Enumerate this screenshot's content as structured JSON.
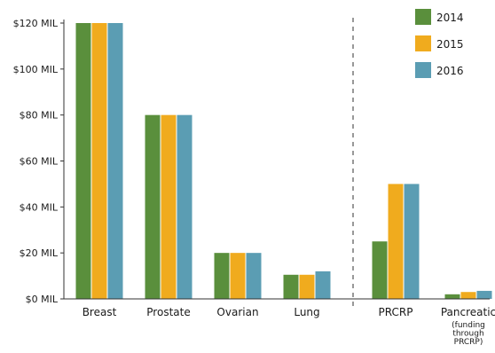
{
  "chart_data": {
    "type": "bar",
    "title": "",
    "xlabel": "",
    "ylabel": "",
    "ylim": [
      0,
      120
    ],
    "y_ticks": [
      0,
      20,
      40,
      60,
      80,
      100,
      120
    ],
    "y_tick_labels": [
      "$0 MIL",
      "$20 MIL",
      "$40 MIL",
      "$60 MIL",
      "$80 MIL",
      "$100 MIL",
      "$120 MIL"
    ],
    "categories": [
      "Breast",
      "Prostate",
      "Ovarian",
      "Lung",
      "PRCRP",
      "Pancreatic"
    ],
    "category_notes": {
      "Pancreatic": [
        "(funding",
        "through",
        "PRCRP)"
      ]
    },
    "separator_after_category": "Lung",
    "legend_placement": "top-right",
    "grid": false,
    "series": [
      {
        "name": "2014",
        "color": "#5a8f3c",
        "values": [
          120,
          80,
          20,
          10.5,
          25,
          2
        ]
      },
      {
        "name": "2015",
        "color": "#f0ab1e",
        "values": [
          120,
          80,
          20,
          10.5,
          50,
          3
        ]
      },
      {
        "name": "2016",
        "color": "#5b9db3",
        "values": [
          120,
          80,
          20,
          12,
          50,
          3.5
        ]
      }
    ]
  }
}
